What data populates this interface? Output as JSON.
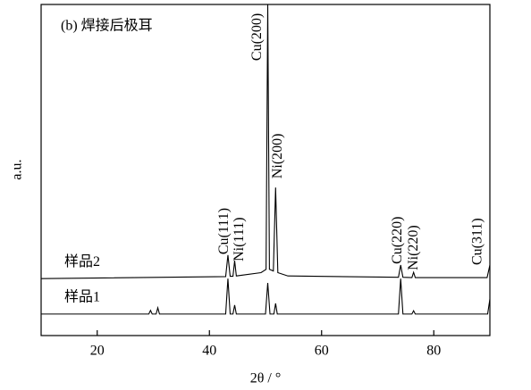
{
  "chart_data": {
    "type": "line",
    "title": "(b) 焊接后极耳",
    "xlabel": "2θ / °",
    "ylabel": "a.u.",
    "xlim": [
      10,
      90
    ],
    "xticks": [
      20,
      40,
      60,
      80
    ],
    "ylim": [
      0,
      100
    ],
    "series": [
      {
        "name": "样品2",
        "color": "#000000",
        "x": [
          10,
          42.9,
          43.3,
          43.7,
          44.2,
          44.5,
          44.8,
          49.2,
          50.1,
          50.4,
          50.7,
          51.4,
          51.8,
          52.2,
          54,
          73.7,
          74.1,
          74.5,
          76.1,
          76.4,
          76.7,
          89.5,
          90
        ],
        "values": [
          17.2,
          17.8,
          24.3,
          17.9,
          17.9,
          22.6,
          18,
          19,
          20,
          100,
          20,
          19.5,
          44.7,
          19,
          18,
          17.6,
          21.3,
          17.6,
          17.5,
          19.1,
          17.5,
          17.5,
          21.3
        ]
      },
      {
        "name": "样品1",
        "color": "#000000",
        "x": [
          10,
          29.2,
          29.5,
          29.8,
          30.5,
          30.8,
          31.1,
          42.9,
          43.3,
          43.7,
          44.2,
          44.5,
          44.8,
          50.0,
          50.4,
          50.8,
          51.5,
          51.8,
          52.1,
          73.7,
          74.1,
          74.5,
          76.1,
          76.4,
          76.7,
          89.6,
          90
        ],
        "values": [
          6.5,
          6.5,
          7.6,
          6.5,
          6.5,
          8.4,
          6.5,
          6.5,
          17.2,
          6.5,
          6.5,
          9.2,
          6.5,
          6.5,
          15.9,
          6.5,
          6.5,
          9.7,
          6.5,
          6.5,
          17.2,
          6.5,
          6.5,
          7.5,
          6.5,
          6.5,
          11
        ]
      }
    ],
    "annotations": [
      {
        "text": "Cu(111)",
        "x": 42.7,
        "y": 24.5
      },
      {
        "text": "Ni(111)",
        "x": 45.4,
        "y": 22.4
      },
      {
        "text": "Cu(200)",
        "x": 48.6,
        "y": 83
      },
      {
        "text": "Ni(200)",
        "x": 52.3,
        "y": 47.4
      },
      {
        "text": "Cu(220)",
        "x": 73.6,
        "y": 21.6
      },
      {
        "text": "Ni(220)",
        "x": 76.5,
        "y": 19.7
      },
      {
        "text": "Cu(311)",
        "x": 87.9,
        "y": 21.3
      }
    ]
  }
}
